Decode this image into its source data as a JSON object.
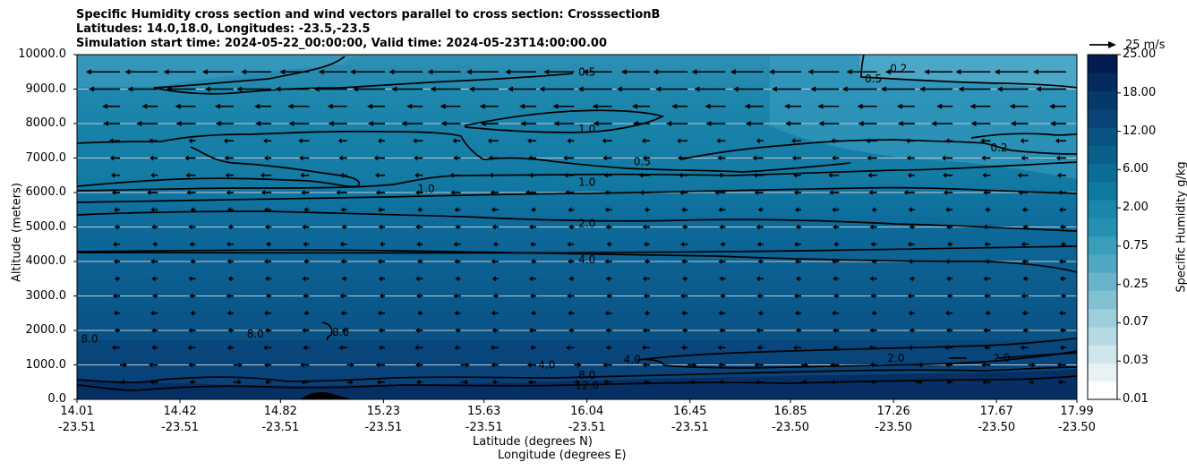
{
  "title_lines": [
    "Specific Humidity cross section and wind vectors parallel to cross section: CrosssectionB",
    "Latitudes: 14.0,18.0, Longitudes: -23.5,-23.5",
    "Simulation start time: 2024-05-22_00:00:00, Valid time: 2024-05-23T14:00:00.00"
  ],
  "chart_data": {
    "type": "heatmap",
    "title": "Specific Humidity cross section and wind vectors parallel to cross section: CrosssectionB",
    "ylabel": "Altitude (meters)",
    "xlabel_lat": "Latitude (degrees N)",
    "xlabel_lon": "Longitude (degrees E)",
    "ylim": [
      0,
      10000
    ],
    "y_ticks": [
      "0.0",
      "1000.0",
      "2000.0",
      "3000.0",
      "4000.0",
      "5000.0",
      "6000.0",
      "7000.0",
      "8000.0",
      "9000.0",
      "10000.0"
    ],
    "x_ticks_lat": [
      "14.01",
      "14.42",
      "14.82",
      "15.23",
      "15.63",
      "16.04",
      "16.45",
      "16.85",
      "17.26",
      "17.67",
      "17.99"
    ],
    "x_ticks_lon": [
      "-23.51",
      "-23.51",
      "-23.51",
      "-23.51",
      "-23.51",
      "-23.51",
      "-23.51",
      "-23.50",
      "-23.50",
      "-23.50",
      "-23.50"
    ],
    "grid_y": true,
    "colorbar": {
      "label": "Specific Humidity g/kg",
      "ticks": [
        "0.01",
        "0.03",
        "0.07",
        "0.25",
        "0.75",
        "2.00",
        "6.00",
        "12.00",
        "18.00",
        "25.00"
      ],
      "levels": [
        0.01,
        0.02,
        0.03,
        0.05,
        0.07,
        0.1,
        0.25,
        0.5,
        0.75,
        1.0,
        2.0,
        4.0,
        6.0,
        8.0,
        12.0,
        15.0,
        18.0,
        21.0,
        25.0
      ]
    },
    "contour_labels": [
      {
        "text": "0.5",
        "lat": 16.04,
        "alt": 9500
      },
      {
        "text": "1.0",
        "lat": 16.04,
        "alt": 7850
      },
      {
        "text": "1.0",
        "lat": 16.04,
        "alt": 6300
      },
      {
        "text": "1.0",
        "lat": 15.4,
        "alt": 6100
      },
      {
        "text": "2.0",
        "lat": 16.04,
        "alt": 5100
      },
      {
        "text": "4.0",
        "lat": 16.04,
        "alt": 4050
      },
      {
        "text": "8.0",
        "lat": 16.04,
        "alt": 700
      },
      {
        "text": "12.0",
        "lat": 16.04,
        "alt": 400
      },
      {
        "text": "4.0",
        "lat": 15.88,
        "alt": 1000
      },
      {
        "text": "8.0",
        "lat": 14.72,
        "alt": 1900
      },
      {
        "text": "8.0",
        "lat": 15.06,
        "alt": 1950
      },
      {
        "text": "8.0",
        "lat": 14.06,
        "alt": 1750
      },
      {
        "text": "4.0",
        "lat": 16.22,
        "alt": 1150
      },
      {
        "text": "0.5",
        "lat": 16.26,
        "alt": 6900
      },
      {
        "text": "0.5",
        "lat": 17.18,
        "alt": 9300
      },
      {
        "text": "0.2",
        "lat": 17.28,
        "alt": 9600
      },
      {
        "text": "0.2",
        "lat": 17.68,
        "alt": 7300
      },
      {
        "text": "2.0",
        "lat": 17.27,
        "alt": 1200
      },
      {
        "text": "2.0",
        "lat": 17.69,
        "alt": 1200
      }
    ],
    "wind_reference": {
      "label": "25 m/s",
      "speed": 25
    }
  }
}
